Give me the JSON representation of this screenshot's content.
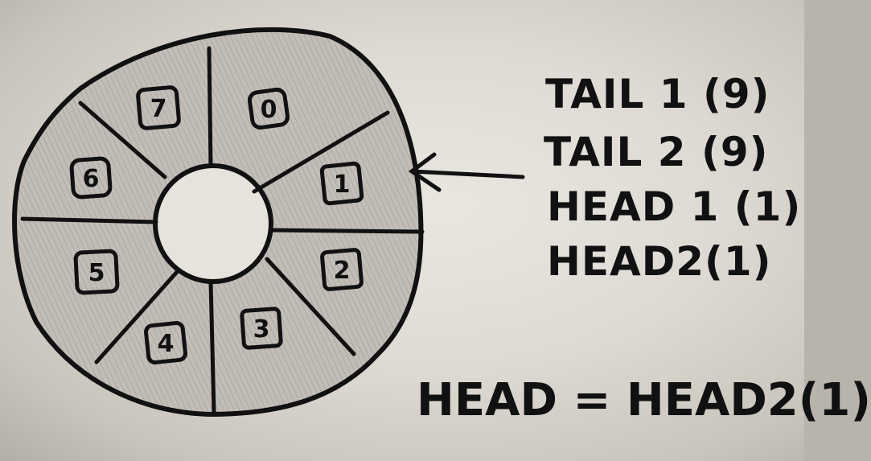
{
  "ring": {
    "slots": [
      {
        "label": "0"
      },
      {
        "label": "1"
      },
      {
        "label": "2"
      },
      {
        "label": "3"
      },
      {
        "label": "4"
      },
      {
        "label": "5"
      },
      {
        "label": "6"
      },
      {
        "label": "7"
      }
    ]
  },
  "pointers": {
    "tail1": "TAIL 1 (9)",
    "tail2": "TAIL 2 (9)",
    "head1": "HEAD 1 (1)",
    "head2": "HEAD2(1)",
    "head_equation": "HEAD = HEAD2(1)"
  },
  "colors": {
    "ink": "#111111",
    "ring_fill": "#bdb9b2",
    "paper": "#e4e1db"
  }
}
